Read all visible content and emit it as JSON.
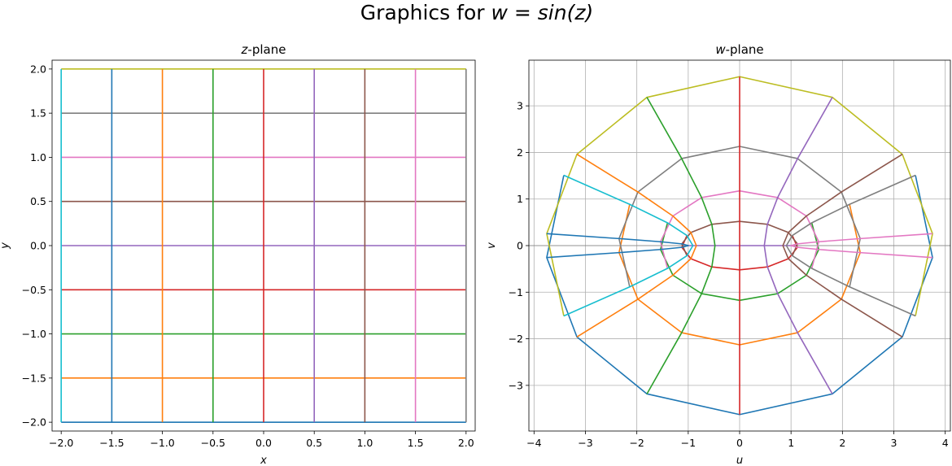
{
  "figure": {
    "title_prefix": "Graphics for ",
    "title_math": "w = sin(z)"
  },
  "chart_data": [
    {
      "type": "line",
      "title_italic": "z",
      "title_rest": "-plane",
      "xlabel": "x",
      "ylabel": "y",
      "xlim": [
        -2.09,
        2.09
      ],
      "ylim": [
        -2.1,
        2.1
      ],
      "grid": false,
      "xticks": [
        -2.0,
        -1.5,
        -1.0,
        -0.5,
        0.0,
        0.5,
        1.0,
        1.5,
        2.0
      ],
      "xtick_labels": [
        "−2.0",
        "−1.5",
        "−1.0",
        "−0.5",
        "0.0",
        "0.5",
        "1.0",
        "1.5",
        "2.0"
      ],
      "yticks": [
        -2.0,
        -1.5,
        -1.0,
        -0.5,
        0.0,
        0.5,
        1.0,
        1.5,
        2.0
      ],
      "ytick_labels": [
        "−2.0",
        "−1.5",
        "−1.0",
        "−0.5",
        "0.0",
        "0.5",
        "1.0",
        "1.5",
        "2.0"
      ],
      "horizontal_lines_y": [
        -2.0,
        -1.5,
        -1.0,
        -0.5,
        0.0,
        0.5,
        1.0,
        1.5,
        2.0
      ],
      "vertical_lines_x": [
        -2.0,
        -1.5,
        -1.0,
        -0.5,
        0.0,
        0.5,
        1.0,
        1.5,
        2.0
      ],
      "line_range": [
        -2.0,
        2.0
      ]
    },
    {
      "type": "line",
      "title_italic": "w",
      "title_rest": "-plane",
      "xlabel": "u",
      "ylabel": "v",
      "xlim": [
        -4.1,
        4.1
      ],
      "ylim": [
        -3.98,
        3.98
      ],
      "grid": true,
      "xticks": [
        -4,
        -3,
        -2,
        -1,
        0,
        1,
        2,
        3,
        4
      ],
      "xtick_labels": [
        "−4",
        "−3",
        "−2",
        "−1",
        "0",
        "1",
        "2",
        "3",
        "4"
      ],
      "yticks": [
        -3,
        -2,
        -1,
        0,
        1,
        2,
        3
      ],
      "ytick_labels": [
        "−3",
        "−2",
        "−1",
        "0",
        "1",
        "2",
        "3"
      ],
      "mapping": "sin",
      "sample_points": [
        -2.0,
        -1.5,
        -1.0,
        -0.5,
        0.0,
        0.5,
        1.0,
        1.5,
        2.0
      ],
      "images_of_horizontal_lines_y": [
        -2.0,
        -1.5,
        -1.0,
        -0.5,
        0.0,
        0.5,
        1.0,
        1.5,
        2.0
      ],
      "images_of_vertical_lines_x": [
        -2.0,
        -1.5,
        -1.0,
        -0.5,
        0.0,
        0.5,
        1.0,
        1.5,
        2.0
      ]
    }
  ],
  "palette": [
    "#1f77b4",
    "#ff7f0e",
    "#2ca02c",
    "#d62728",
    "#9467bd",
    "#8c564b",
    "#e377c2",
    "#7f7f7f",
    "#bcbd22",
    "#17becf"
  ]
}
